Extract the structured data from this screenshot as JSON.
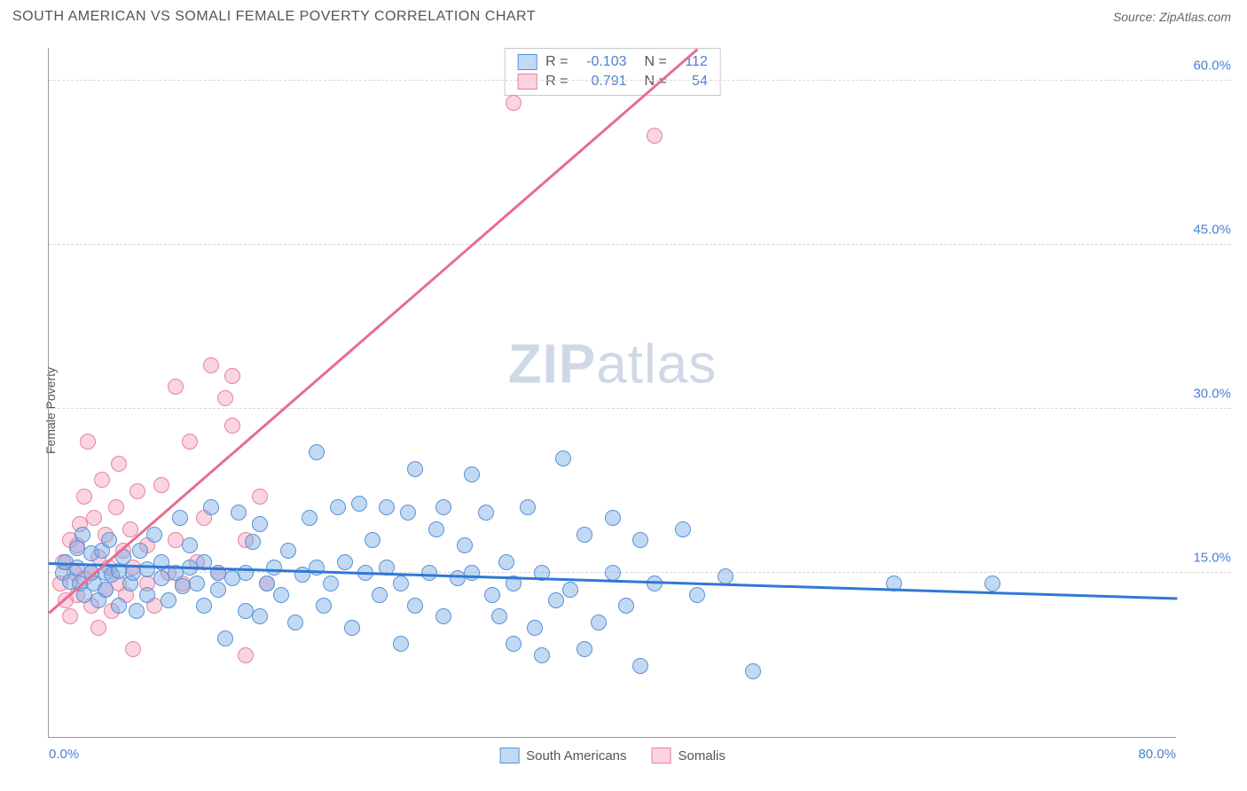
{
  "header": {
    "title": "SOUTH AMERICAN VS SOMALI FEMALE POVERTY CORRELATION CHART",
    "source_prefix": "Source: ",
    "source_name": "ZipAtlas.com"
  },
  "chart": {
    "type": "scatter",
    "ylabel": "Female Poverty",
    "watermark_bold": "ZIP",
    "watermark_rest": "atlas",
    "xlim": [
      0,
      80
    ],
    "ylim": [
      0,
      63
    ],
    "xticks": [
      {
        "v": 0,
        "label": "0.0%",
        "align": "left"
      },
      {
        "v": 80,
        "label": "80.0%",
        "align": "right"
      }
    ],
    "yticks": [
      {
        "v": 15,
        "label": "15.0%"
      },
      {
        "v": 30,
        "label": "30.0%"
      },
      {
        "v": 45,
        "label": "45.0%"
      },
      {
        "v": 60,
        "label": "60.0%"
      }
    ],
    "grid_color": "#d8d8d8",
    "background_color": "#ffffff",
    "series": [
      {
        "name": "South Americans",
        "fill": "rgba(120,170,230,0.45)",
        "stroke": "#5a92d6",
        "marker_radius": 9,
        "trend": {
          "x1": 0,
          "y1": 16.0,
          "x2": 80,
          "y2": 12.8,
          "color": "#2f78d6",
          "width": 3
        },
        "stats": {
          "R": "-0.103",
          "N": "112"
        },
        "points": [
          [
            1,
            15
          ],
          [
            1.2,
            16
          ],
          [
            1.5,
            14.2
          ],
          [
            2,
            15.5
          ],
          [
            2,
            17.3
          ],
          [
            2.2,
            14
          ],
          [
            2.4,
            18.5
          ],
          [
            2.5,
            13
          ],
          [
            3,
            15
          ],
          [
            3,
            16.8
          ],
          [
            3.2,
            14
          ],
          [
            3.5,
            12.5
          ],
          [
            3.8,
            17
          ],
          [
            4,
            15
          ],
          [
            4,
            13.5
          ],
          [
            4.3,
            18
          ],
          [
            4.5,
            14.8
          ],
          [
            5,
            15.2
          ],
          [
            5,
            12
          ],
          [
            5.3,
            16.5
          ],
          [
            5.8,
            14
          ],
          [
            6,
            15
          ],
          [
            6.2,
            11.5
          ],
          [
            6.5,
            17
          ],
          [
            7,
            15.3
          ],
          [
            7,
            13
          ],
          [
            7.5,
            18.5
          ],
          [
            8,
            14.5
          ],
          [
            8,
            16
          ],
          [
            8.5,
            12.5
          ],
          [
            9,
            15
          ],
          [
            9.3,
            20
          ],
          [
            9.5,
            13.8
          ],
          [
            10,
            15.5
          ],
          [
            10,
            17.5
          ],
          [
            10.5,
            14
          ],
          [
            11,
            12
          ],
          [
            11,
            16
          ],
          [
            11.5,
            21
          ],
          [
            12,
            15
          ],
          [
            12,
            13.5
          ],
          [
            12.5,
            9
          ],
          [
            13,
            14.5
          ],
          [
            13.5,
            20.5
          ],
          [
            14,
            15
          ],
          [
            14,
            11.5
          ],
          [
            14.5,
            17.8
          ],
          [
            15,
            11
          ],
          [
            15,
            19.5
          ],
          [
            15.5,
            14
          ],
          [
            16,
            15.5
          ],
          [
            16.5,
            13
          ],
          [
            17,
            17
          ],
          [
            17.5,
            10.5
          ],
          [
            18,
            14.8
          ],
          [
            18.5,
            20
          ],
          [
            19,
            26
          ],
          [
            19,
            15.5
          ],
          [
            19.5,
            12
          ],
          [
            20,
            14
          ],
          [
            20.5,
            21
          ],
          [
            21,
            16
          ],
          [
            21.5,
            10
          ],
          [
            22,
            21.3
          ],
          [
            22.5,
            15
          ],
          [
            23,
            18
          ],
          [
            23.5,
            13
          ],
          [
            24,
            21
          ],
          [
            24,
            15.5
          ],
          [
            25,
            8.5
          ],
          [
            25,
            14
          ],
          [
            25.5,
            20.5
          ],
          [
            26,
            24.5
          ],
          [
            26,
            12
          ],
          [
            27,
            15
          ],
          [
            27.5,
            19
          ],
          [
            28,
            21
          ],
          [
            28,
            11
          ],
          [
            29,
            14.5
          ],
          [
            29.5,
            17.5
          ],
          [
            30,
            24
          ],
          [
            30,
            15
          ],
          [
            31,
            20.5
          ],
          [
            31.5,
            13
          ],
          [
            32,
            11
          ],
          [
            32.5,
            16
          ],
          [
            33,
            8.5
          ],
          [
            33,
            14
          ],
          [
            34,
            21
          ],
          [
            34.5,
            10
          ],
          [
            35,
            15
          ],
          [
            35,
            7.5
          ],
          [
            36,
            12.5
          ],
          [
            36.5,
            25.5
          ],
          [
            37,
            13.5
          ],
          [
            38,
            8
          ],
          [
            38,
            18.5
          ],
          [
            39,
            10.5
          ],
          [
            40,
            15
          ],
          [
            40,
            20
          ],
          [
            41,
            12
          ],
          [
            42,
            18
          ],
          [
            42,
            6.5
          ],
          [
            43,
            14
          ],
          [
            45,
            19
          ],
          [
            46,
            13
          ],
          [
            48,
            14.7
          ],
          [
            50,
            6
          ],
          [
            60,
            14
          ],
          [
            67,
            14
          ]
        ]
      },
      {
        "name": "Somalis",
        "fill": "rgba(244,160,185,0.45)",
        "stroke": "#e7839f",
        "marker_radius": 9,
        "trend": {
          "x1": 0,
          "y1": 11.5,
          "x2": 46,
          "y2": 63,
          "color": "#e76d92",
          "width": 2.5
        },
        "stats": {
          "R": "0.791",
          "N": "54"
        },
        "points": [
          [
            0.8,
            14
          ],
          [
            1,
            16
          ],
          [
            1.2,
            12.5
          ],
          [
            1.5,
            18
          ],
          [
            1.5,
            11
          ],
          [
            1.8,
            15
          ],
          [
            2,
            13
          ],
          [
            2,
            17.5
          ],
          [
            2.2,
            19.5
          ],
          [
            2.5,
            14.5
          ],
          [
            2.5,
            22
          ],
          [
            2.8,
            27
          ],
          [
            3,
            15
          ],
          [
            3,
            12
          ],
          [
            3.2,
            20
          ],
          [
            3.5,
            16.5
          ],
          [
            3.5,
            10
          ],
          [
            3.8,
            23.5
          ],
          [
            4,
            13.5
          ],
          [
            4,
            18.5
          ],
          [
            4.3,
            15.5
          ],
          [
            4.5,
            11.5
          ],
          [
            4.8,
            21
          ],
          [
            5,
            14
          ],
          [
            5,
            25
          ],
          [
            5.3,
            17
          ],
          [
            5.5,
            13
          ],
          [
            5.8,
            19
          ],
          [
            6,
            15.5
          ],
          [
            6,
            8
          ],
          [
            6.3,
            22.5
          ],
          [
            7,
            14
          ],
          [
            7,
            17.5
          ],
          [
            7.5,
            12
          ],
          [
            8,
            23
          ],
          [
            8.5,
            15
          ],
          [
            9,
            32
          ],
          [
            9,
            18
          ],
          [
            9.5,
            14
          ],
          [
            10,
            27
          ],
          [
            10.5,
            16
          ],
          [
            11,
            20
          ],
          [
            11.5,
            34
          ],
          [
            12,
            15
          ],
          [
            12.5,
            31
          ],
          [
            13,
            33
          ],
          [
            13,
            28.5
          ],
          [
            14,
            18
          ],
          [
            14,
            7.5
          ],
          [
            15,
            22
          ],
          [
            15.5,
            14
          ],
          [
            33,
            58
          ],
          [
            43,
            55
          ]
        ]
      }
    ],
    "stats_box": {
      "border_color": "#c9c9c9",
      "r_label": "R =",
      "n_label": "N =",
      "value_color": "#4a7fd6"
    }
  }
}
